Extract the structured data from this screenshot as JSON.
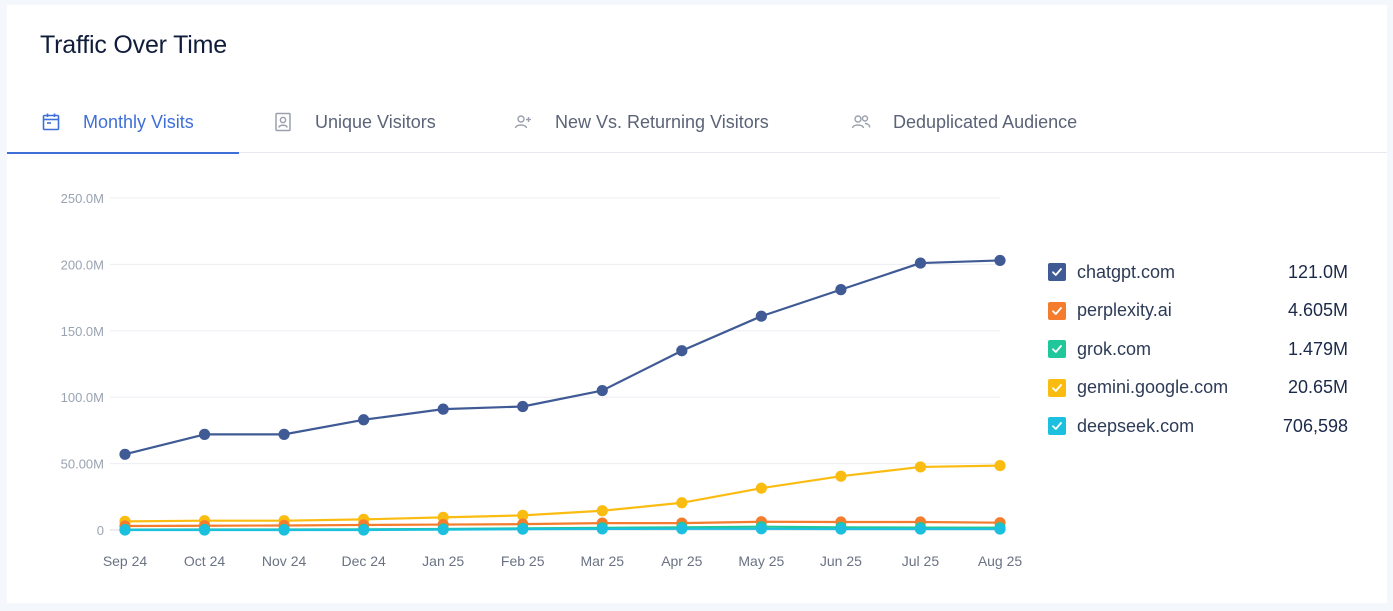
{
  "header": {
    "title": "Traffic Over Time"
  },
  "tabs": [
    {
      "label": "Monthly Visits",
      "icon": "calendar-icon",
      "active": true
    },
    {
      "label": "Unique Visitors",
      "icon": "user-card-icon",
      "active": false
    },
    {
      "label": "New Vs. Returning Visitors",
      "icon": "user-plus-icon",
      "active": false
    },
    {
      "label": "Deduplicated Audience",
      "icon": "users-icon",
      "active": false
    }
  ],
  "colors": {
    "accent": "#3e6fd8"
  },
  "chart_data": {
    "type": "line",
    "title": "",
    "xlabel": "",
    "ylabel": "",
    "ylim": [
      0,
      250000000
    ],
    "yticks": [
      0,
      50000000,
      100000000,
      150000000,
      200000000,
      250000000
    ],
    "ytick_labels": [
      "0",
      "50.00M",
      "100.0M",
      "150.0M",
      "200.0M",
      "250.0M"
    ],
    "grid": true,
    "legend_position": "right",
    "categories": [
      "Sep 24",
      "Oct 24",
      "Nov 24",
      "Dec 24",
      "Jan 25",
      "Feb 25",
      "Mar 25",
      "Apr 25",
      "May 25",
      "Jun 25",
      "Jul 25",
      "Aug 25"
    ],
    "series": [
      {
        "name": "chatgpt.com",
        "color": "#3f5a94",
        "legend_value": "121.0M",
        "values": [
          57000000,
          72000000,
          72000000,
          83000000,
          91000000,
          93000000,
          105000000,
          135000000,
          161000000,
          181000000,
          201000000,
          203000000
        ]
      },
      {
        "name": "perplexity.ai",
        "color": "#f47c2c",
        "legend_value": "4.605M",
        "values": [
          3000000,
          3200000,
          3400000,
          3800000,
          4100000,
          4400000,
          5200000,
          5200000,
          6200000,
          6000000,
          6000000,
          5500000
        ]
      },
      {
        "name": "grok.com",
        "color": "#20c79a",
        "legend_value": "1.479M",
        "values": [
          300000,
          400000,
          400000,
          500000,
          800000,
          1200000,
          1600000,
          2000000,
          2500000,
          2000000,
          1800000,
          1700000
        ]
      },
      {
        "name": "gemini.google.com",
        "color": "#fbbc12",
        "legend_value": "20.65M",
        "values": [
          6500000,
          7000000,
          7000000,
          8000000,
          9500000,
          11000000,
          14500000,
          20500000,
          31500000,
          40500000,
          47500000,
          48500000
        ]
      },
      {
        "name": "deepseek.com",
        "color": "#1cc0de",
        "legend_value": "706,598",
        "values": [
          0,
          0,
          0,
          0,
          300000,
          600000,
          800000,
          900000,
          900000,
          700000,
          700000,
          700000
        ]
      }
    ]
  }
}
